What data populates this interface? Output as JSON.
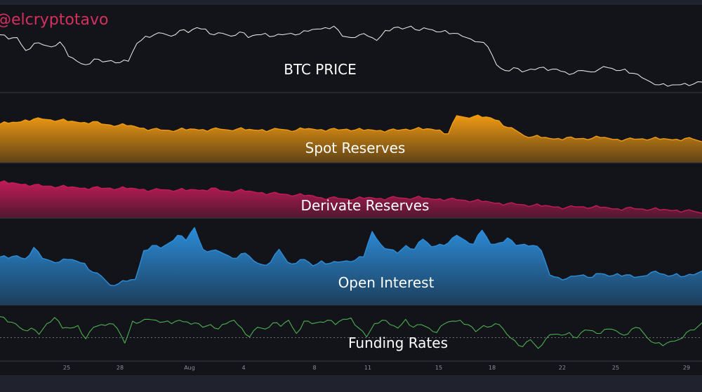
{
  "watermark": "@elcryptotavo",
  "chart_data": [
    {
      "type": "line",
      "title": "BTC PRICE",
      "color": "#e0e0e0",
      "series": [
        {
          "values": [
            0.72,
            0.66,
            0.68,
            0.5,
            0.6,
            0.58,
            0.55,
            0.62,
            0.42,
            0.35,
            0.3,
            0.38,
            0.34,
            0.36,
            0.33,
            0.35,
            0.6,
            0.7,
            0.72,
            0.74,
            0.7,
            0.78,
            0.75,
            0.82,
            0.8,
            0.72,
            0.74,
            0.7,
            0.76,
            0.68,
            0.72,
            0.74,
            0.7,
            0.72,
            0.74,
            0.73,
            0.77,
            0.8,
            0.82,
            0.84,
            0.7,
            0.68,
            0.72,
            0.7,
            0.64,
            0.78,
            0.82,
            0.8,
            0.84,
            0.78,
            0.8,
            0.76,
            0.78,
            0.74,
            0.7,
            0.66,
            0.62,
            0.55,
            0.3,
            0.22,
            0.26,
            0.2,
            0.24,
            0.26,
            0.22,
            0.24,
            0.2,
            0.18,
            0.22,
            0.2,
            0.24,
            0.26,
            0.22,
            0.24,
            0.18,
            0.12,
            0.06,
            0.02,
            0.0,
            0.02,
            0.04,
            0.03,
            0.06
          ]
        }
      ]
    },
    {
      "type": "area",
      "title": "Spot Reserves",
      "color": "#f09a12",
      "series": [
        {
          "values": [
            0.7,
            0.72,
            0.74,
            0.8,
            0.82,
            0.82,
            0.8,
            0.79,
            0.76,
            0.75,
            0.74,
            0.76,
            0.7,
            0.68,
            0.67,
            0.66,
            0.64,
            0.6,
            0.58,
            0.56,
            0.55,
            0.56,
            0.56,
            0.58,
            0.57,
            0.58,
            0.58,
            0.56,
            0.58,
            0.56,
            0.56,
            0.57,
            0.56,
            0.58,
            0.56,
            0.55,
            0.58,
            0.58,
            0.57,
            0.58,
            0.56,
            0.58,
            0.56,
            0.55,
            0.56,
            0.55,
            0.56,
            0.55,
            0.58,
            0.58,
            0.57,
            0.58,
            0.56,
            0.47,
            0.9,
            0.86,
            0.88,
            0.86,
            0.85,
            0.78,
            0.62,
            0.55,
            0.42,
            0.4,
            0.38,
            0.36,
            0.36,
            0.38,
            0.35,
            0.36,
            0.36,
            0.38,
            0.36,
            0.34,
            0.34,
            0.34,
            0.35,
            0.35,
            0.34,
            0.34,
            0.34,
            0.36,
            0.34,
            0.28
          ]
        }
      ]
    },
    {
      "type": "area",
      "title": "Derivate Reserves",
      "color": "#c21c58",
      "series": [
        {
          "values": [
            0.98,
            0.95,
            0.94,
            0.92,
            0.9,
            0.86,
            0.86,
            0.84,
            0.82,
            0.82,
            0.8,
            0.82,
            0.79,
            0.8,
            0.78,
            0.78,
            0.78,
            0.76,
            0.74,
            0.75,
            0.74,
            0.74,
            0.72,
            0.75,
            0.74,
            0.8,
            0.72,
            0.7,
            0.71,
            0.7,
            0.68,
            0.66,
            0.64,
            0.62,
            0.6,
            0.58,
            0.56,
            0.56,
            0.5,
            0.5,
            0.48,
            0.46,
            0.46,
            0.48,
            0.5,
            0.48,
            0.5,
            0.5,
            0.48,
            0.5,
            0.48,
            0.46,
            0.47,
            0.46,
            0.44,
            0.42,
            0.4,
            0.38,
            0.36,
            0.34,
            0.32,
            0.3,
            0.28,
            0.26,
            0.24,
            0.24,
            0.22,
            0.2,
            0.22,
            0.22,
            0.2,
            0.2,
            0.18,
            0.16,
            0.18,
            0.16,
            0.15,
            0.14,
            0.12,
            0.12,
            0.12,
            0.1,
            0.08,
            0.02
          ]
        }
      ]
    },
    {
      "type": "area",
      "title": "Open Interest",
      "color": "#2c8cd8",
      "series": [
        {
          "values": [
            0.5,
            0.48,
            0.52,
            0.47,
            0.65,
            0.48,
            0.44,
            0.42,
            0.46,
            0.44,
            0.4,
            0.26,
            0.2,
            0.06,
            0.08,
            0.12,
            0.15,
            0.6,
            0.68,
            0.64,
            0.72,
            0.84,
            0.76,
            0.96,
            0.62,
            0.6,
            0.58,
            0.52,
            0.48,
            0.56,
            0.44,
            0.38,
            0.42,
            0.62,
            0.42,
            0.4,
            0.46,
            0.36,
            0.44,
            0.4,
            0.42,
            0.44,
            0.45,
            0.5,
            0.9,
            0.7,
            0.62,
            0.56,
            0.68,
            0.62,
            0.78,
            0.66,
            0.7,
            0.72,
            0.84,
            0.76,
            0.7,
            0.92,
            0.7,
            0.72,
            0.8,
            0.68,
            0.7,
            0.68,
            0.6,
            0.22,
            0.18,
            0.16,
            0.2,
            0.22,
            0.18,
            0.24,
            0.2,
            0.24,
            0.22,
            0.18,
            0.2,
            0.26,
            0.24,
            0.2,
            0.24,
            0.2,
            0.22,
            0.28
          ]
        }
      ]
    },
    {
      "type": "line",
      "title": "Funding Rates",
      "color": "#4caf50",
      "series": [
        {
          "values": [
            0.88,
            0.76,
            0.72,
            0.58,
            0.62,
            0.48,
            0.72,
            0.86,
            0.62,
            0.62,
            0.68,
            0.38,
            0.64,
            0.7,
            0.72,
            0.62,
            0.28,
            0.78,
            0.76,
            0.82,
            0.8,
            0.76,
            0.72,
            0.8,
            0.76,
            0.74,
            0.64,
            0.7,
            0.6,
            0.72,
            0.8,
            0.62,
            0.42,
            0.64,
            0.6,
            0.74,
            0.66,
            0.8,
            0.5,
            0.78,
            0.72,
            0.76,
            0.8,
            0.7,
            0.82,
            0.85,
            0.62,
            0.42,
            0.72,
            0.8,
            0.7,
            0.62,
            0.82,
            0.64,
            0.7,
            0.62,
            0.52,
            0.72,
            0.78,
            0.8,
            0.7,
            0.54,
            0.68,
            0.66,
            0.7,
            0.48,
            0.34,
            0.2,
            0.36,
            0.16,
            0.38,
            0.48,
            0.46,
            0.52,
            0.4,
            0.58,
            0.56,
            0.5,
            0.6,
            0.56,
            0.46,
            0.6,
            0.62,
            0.4,
            0.28,
            0.22,
            0.32,
            0.36,
            0.52,
            0.58,
            0.74
          ]
        }
      ]
    }
  ],
  "x_axis": {
    "ticks": [
      "25",
      "28",
      "Aug",
      "4",
      "8",
      "11",
      "15",
      "18",
      "22",
      "25",
      "29"
    ]
  }
}
